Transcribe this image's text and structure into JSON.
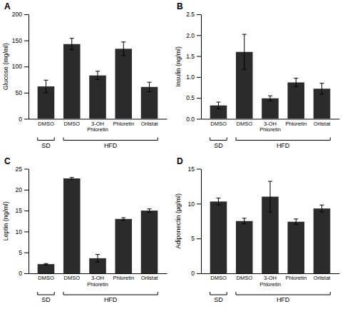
{
  "chart_data": [
    {
      "type": "bar",
      "title": "A",
      "ylabel": "Glucose (mg/ml)",
      "categories": [
        "DMSO",
        "DMSO",
        "3-OH\nPhloretin",
        "Phloretin",
        "Orlistat"
      ],
      "values": [
        62,
        143,
        83,
        134,
        61
      ],
      "errors": [
        12,
        11,
        8,
        13,
        9
      ],
      "color": "#2b2b2b",
      "ylim": [
        0,
        200
      ],
      "yticks": [
        0,
        50,
        100,
        150,
        200
      ],
      "annotations": [
        {
          "text": "SD",
          "count": 1
        },
        {
          "text": "HFD",
          "count": 4
        }
      ]
    },
    {
      "type": "bar",
      "title": "B",
      "ylabel": "Insulin (ng/ml)",
      "categories": [
        "DMSO",
        "DMSO",
        "3-OH\nPhloretin",
        "Phloretin",
        "Orlistat"
      ],
      "values": [
        0.32,
        1.6,
        0.49,
        0.87,
        0.72
      ],
      "errors": [
        0.08,
        0.42,
        0.06,
        0.1,
        0.13
      ],
      "color": "#2b2b2b",
      "ylim": [
        0,
        2.5
      ],
      "yticks": [
        {
          "value": 0,
          "label": "0.0"
        },
        0.5,
        {
          "value": 1,
          "label": "1.0"
        },
        1.5,
        {
          "value": 2,
          "label": "2.0"
        },
        2.5
      ],
      "annotations": [
        {
          "text": "SD",
          "count": 1
        },
        {
          "text": "HFD",
          "count": 4
        }
      ]
    },
    {
      "type": "bar",
      "title": "C",
      "ylabel": "Leptin (ng/ml)",
      "categories": [
        "DMSO",
        "DMSO",
        "3-OH\nPhloretin",
        "Phloretin",
        "Orlistat"
      ],
      "values": [
        2.2,
        22.7,
        3.6,
        13.0,
        15.0
      ],
      "errors": [
        0.15,
        0.25,
        0.9,
        0.3,
        0.4
      ],
      "color": "#2b2b2b",
      "ylim": [
        0,
        25
      ],
      "yticks": [
        0,
        5,
        10,
        15,
        20,
        25
      ],
      "annotations": [
        {
          "text": "SD",
          "count": 1
        },
        {
          "text": "HFD",
          "count": 4
        }
      ]
    },
    {
      "type": "bar",
      "title": "D",
      "ylabel": "Adiponectin (µg/ml)",
      "categories": [
        "DMSO",
        "DMSO",
        "3-OH\nPhloretin",
        "Phloretin",
        "Orlistat"
      ],
      "values": [
        10.3,
        7.5,
        11.0,
        7.4,
        9.3
      ],
      "errors": [
        0.5,
        0.4,
        2.2,
        0.4,
        0.5
      ],
      "color": "#2b2b2b",
      "ylim": [
        0,
        15
      ],
      "yticks": [
        0,
        5,
        10,
        15
      ],
      "annotations": [
        {
          "text": "SD",
          "count": 1
        },
        {
          "text": "HFD",
          "count": 4
        }
      ]
    }
  ]
}
